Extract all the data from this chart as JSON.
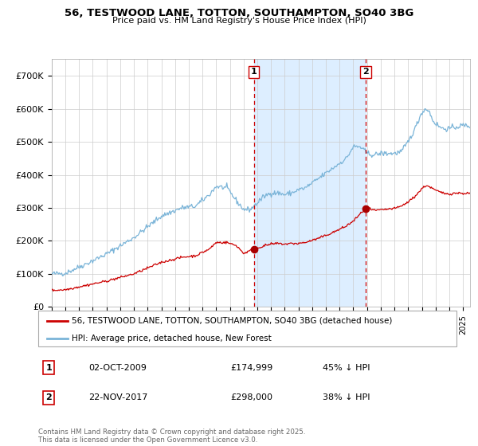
{
  "title1": "56, TESTWOOD LANE, TOTTON, SOUTHAMPTON, SO40 3BG",
  "title2": "Price paid vs. HM Land Registry's House Price Index (HPI)",
  "ylim": [
    0,
    750000
  ],
  "yticks": [
    0,
    100000,
    200000,
    300000,
    400000,
    500000,
    600000,
    700000
  ],
  "ytick_labels": [
    "£0",
    "£100K",
    "£200K",
    "£300K",
    "£400K",
    "£500K",
    "£600K",
    "£700K"
  ],
  "hpi_color": "#7ab4d8",
  "price_color": "#cc0000",
  "marker_color": "#aa0000",
  "vline_color": "#cc0000",
  "shade_color": "#ddeeff",
  "sale1_date": 2009.75,
  "sale1_price": 174999,
  "sale2_date": 2017.9,
  "sale2_price": 298000,
  "legend_label_red": "56, TESTWOOD LANE, TOTTON, SOUTHAMPTON, SO40 3BG (detached house)",
  "legend_label_blue": "HPI: Average price, detached house, New Forest",
  "annotation1_label": "1",
  "annotation1_date": "02-OCT-2009",
  "annotation1_price": "£174,999",
  "annotation1_pct": "45% ↓ HPI",
  "annotation2_label": "2",
  "annotation2_date": "22-NOV-2017",
  "annotation2_price": "£298,000",
  "annotation2_pct": "38% ↓ HPI",
  "footer": "Contains HM Land Registry data © Crown copyright and database right 2025.\nThis data is licensed under the Open Government Licence v3.0.",
  "bg_color": "#ffffff",
  "grid_color": "#cccccc"
}
